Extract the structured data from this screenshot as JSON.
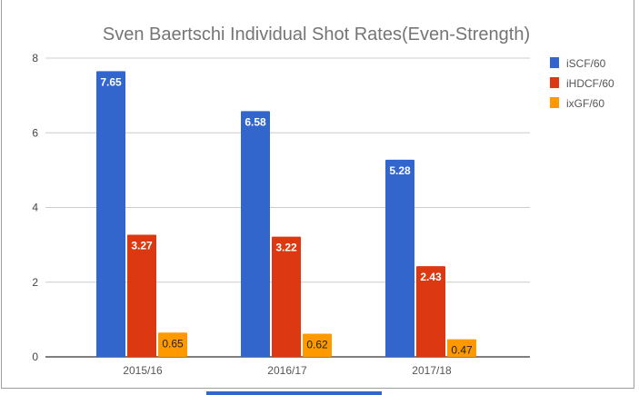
{
  "chart_data": {
    "type": "bar",
    "title": "Sven Baertschi Individual Shot Rates(Even-Strength)",
    "categories": [
      "2015/16",
      "2016/17",
      "2017/18"
    ],
    "series": [
      {
        "name": "iSCF/60",
        "color": "#3366cc",
        "values": [
          7.65,
          6.58,
          5.28
        ]
      },
      {
        "name": "iHDCF/60",
        "color": "#dc3912",
        "values": [
          3.27,
          3.22,
          2.43
        ]
      },
      {
        "name": "ixGF/60",
        "color": "#ff9900",
        "values": [
          0.65,
          0.62,
          0.47
        ]
      }
    ],
    "yticks": [
      "0",
      "2",
      "4",
      "6",
      "8"
    ],
    "ylim": [
      0,
      8
    ],
    "xlabel": "",
    "ylabel": "",
    "grid": true,
    "legend": "right"
  }
}
